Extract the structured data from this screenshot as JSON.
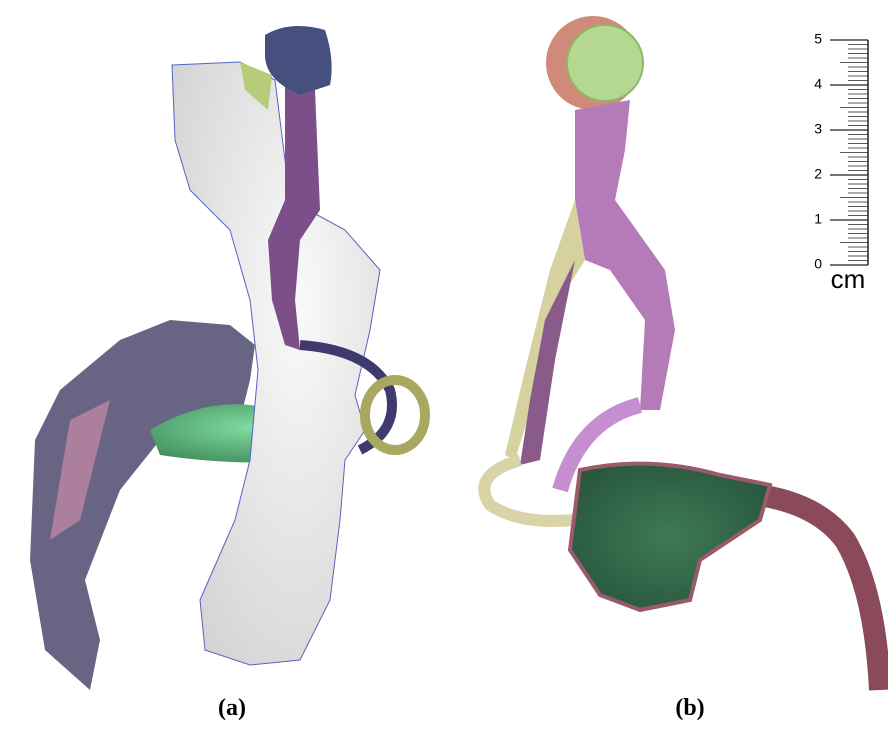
{
  "panels": [
    {
      "label": "(a)"
    },
    {
      "label": "(b)"
    }
  ],
  "scale": {
    "ticks": [
      0,
      1,
      2,
      3,
      4,
      5
    ],
    "unit": "cm"
  }
}
